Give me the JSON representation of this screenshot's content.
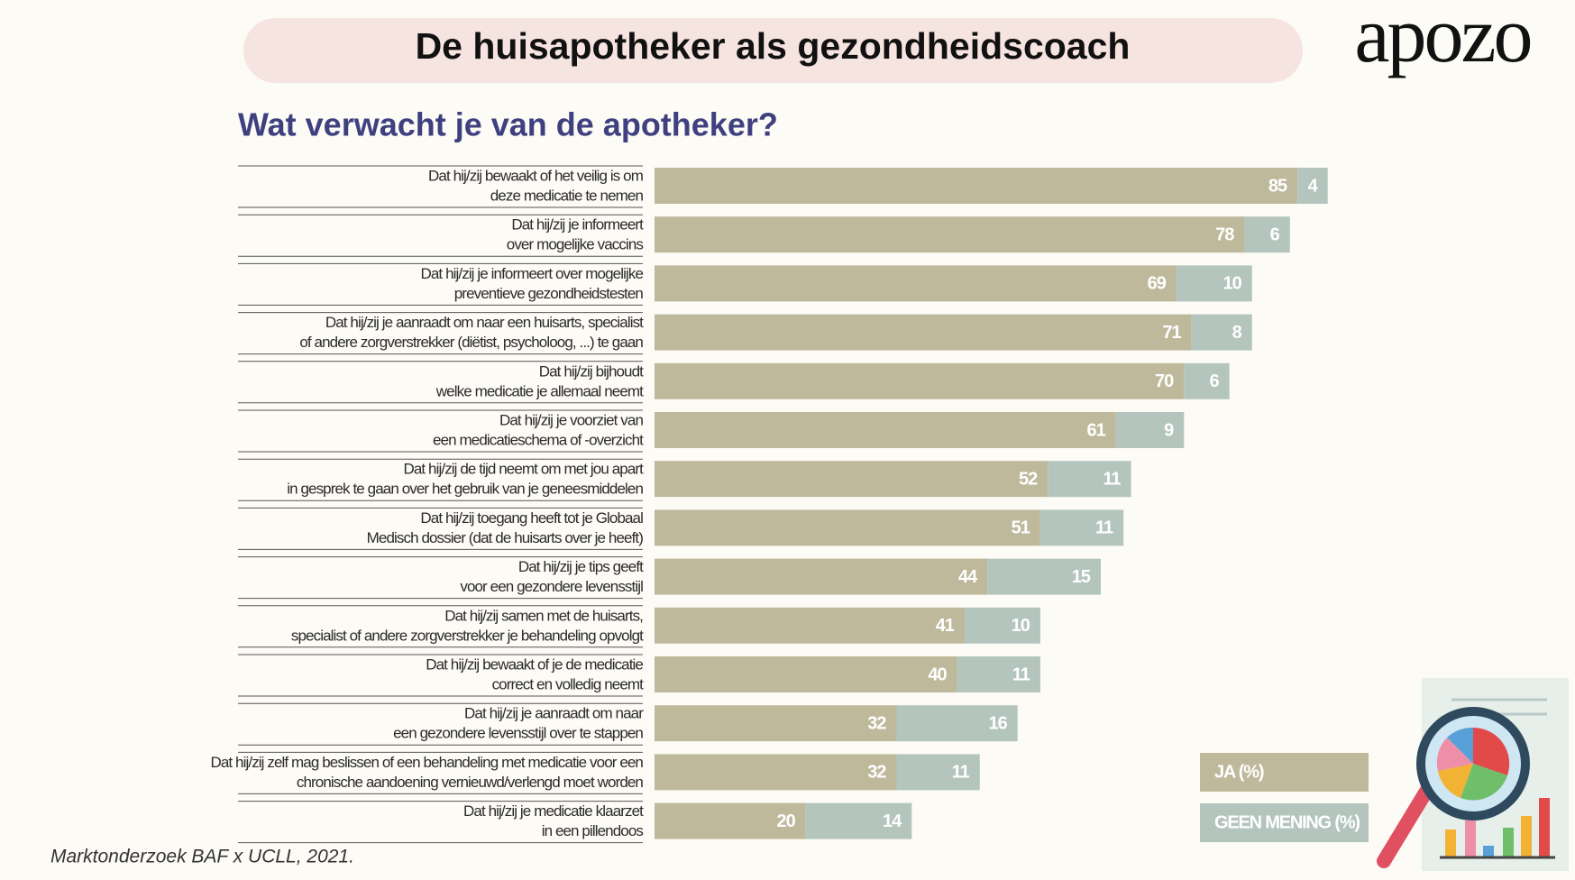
{
  "chart_data": {
    "type": "stacked-bar",
    "title": "De huisapotheker als gezondheidscoach",
    "brand": "apozo",
    "subtitle": "Wat verwacht je van de apotheker?",
    "source": "Marktonderzoek BAF x UCLL, 2021.",
    "categories": [
      [
        "Dat hij/zij bewaakt of het veilig is om",
        "deze medicatie te nemen"
      ],
      [
        "Dat hij/zij je informeert",
        "over mogelijke vaccins"
      ],
      [
        "Dat hij/zij je informeert over mogelijke",
        "preventieve gezondheidstesten"
      ],
      [
        "Dat hij/zij je aanraadt om naar een huisarts, specialist",
        "of andere zorgverstrekker (diëtist, psycholoog, ...) te gaan"
      ],
      [
        "Dat hij/zij bijhoudt",
        "welke medicatie je allemaal neemt"
      ],
      [
        "Dat hij/zij je voorziet van",
        "een medicatieschema of -overzicht"
      ],
      [
        "Dat hij/zij de tijd neemt om met jou apart",
        "in gesprek te gaan over het gebruik van je geneesmiddelen"
      ],
      [
        "Dat hij/zij toegang heeft tot je Globaal",
        "Medisch dossier (dat de huisarts over je heeft)"
      ],
      [
        "Dat hij/zij je tips geeft",
        "voor een gezondere levensstijl"
      ],
      [
        "Dat hij/zij samen met de huisarts,",
        "specialist of andere zorgverstrekker je behandeling opvolgt"
      ],
      [
        "Dat hij/zij bewaakt of je de medicatie",
        "correct en volledig neemt"
      ],
      [
        "Dat hij/zij je aanraadt om naar",
        "een gezondere levensstijl over te stappen"
      ],
      [
        "Dat hij/zij zelf mag beslissen of een behandeling met medicatie voor een",
        "chronische aandoening vernieuwd/verlengd moet worden"
      ],
      [
        "Dat hij/zij je medicatie klaarzet",
        "in een pillendoos"
      ]
    ],
    "series": [
      {
        "name": "JA (%)",
        "color": "#bfb99c",
        "values": [
          85,
          78,
          69,
          71,
          70,
          61,
          52,
          51,
          44,
          41,
          40,
          32,
          32,
          20
        ]
      },
      {
        "name": "GEEN MENING (%)",
        "color": "#b4c5be",
        "values": [
          4,
          6,
          10,
          8,
          6,
          9,
          11,
          11,
          15,
          10,
          11,
          16,
          11,
          14
        ]
      }
    ]
  }
}
